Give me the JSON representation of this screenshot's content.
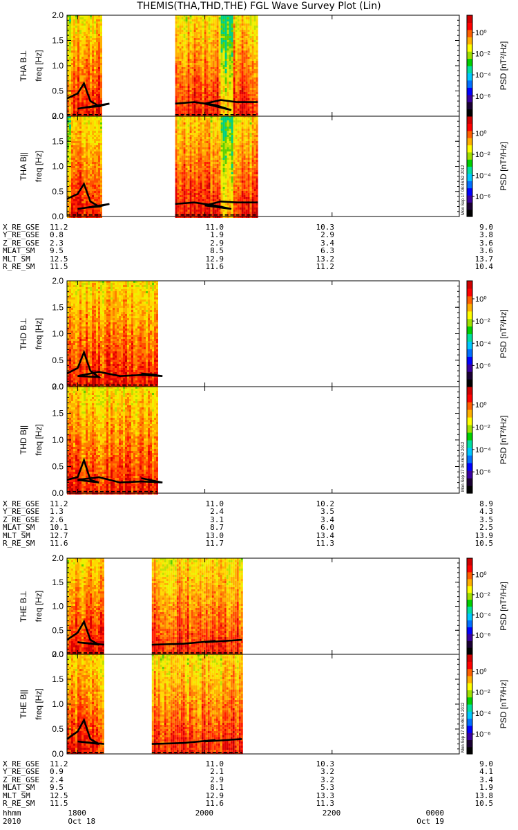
{
  "title": "THEMIS(THA,THD,THE) FGL Wave Survey Plot (Lin)",
  "colors": {
    "mean_line": "#000000",
    "frame": "#000000"
  },
  "colorbar": {
    "label": "PSD [nT²/Hz]",
    "tick_labels": [
      "10⁰",
      "10⁻²",
      "10⁻⁴",
      "10⁻⁶"
    ],
    "stamp": "Mon Sep 17 06:46:52 2012",
    "colors": [
      "#000000",
      "#1a0033",
      "#3a00a0",
      "#0000ff",
      "#0070ff",
      "#00c8ff",
      "#00e0a0",
      "#00d000",
      "#a0e000",
      "#ffff00",
      "#ffb000",
      "#ff6000",
      "#ff0000",
      "#d00000"
    ]
  },
  "chart_data": [
    {
      "type": "heatmap",
      "probe": "THA",
      "panels": [
        {
          "ylabel": "THA B⊥",
          "unit": "freq [Hz]",
          "ylim": [
            0,
            2.0
          ],
          "yticks": [
            "0.0",
            "0.5",
            "1.0",
            "1.5",
            "2.0"
          ],
          "segments": [
            [
              1750,
              1822
            ],
            [
              1932,
              2050
            ]
          ],
          "mean_freq": [
            [
              1750,
              0.35
            ],
            [
              1760,
              0.45
            ],
            [
              1766,
              0.65
            ],
            [
              1772,
              0.3
            ],
            [
              1780,
              0.2
            ],
            [
              1790,
              0.25
            ],
            [
              1800,
              0.15
            ],
            [
              1810,
              0.18
            ],
            [
              1822,
              0.2
            ],
            [
              1932,
              0.25
            ],
            [
              1950,
              0.28
            ],
            [
              1970,
              0.22
            ],
            [
              1985,
              0.12
            ],
            [
              2000,
              0.25
            ],
            [
              2015,
              0.32
            ],
            [
              2030,
              0.28
            ],
            [
              2050,
              0.28
            ]
          ]
        },
        {
          "ylabel": "THA B||",
          "unit": "freq [Hz]",
          "ylim": [
            0,
            2.0
          ],
          "yticks": [
            "0.0",
            "0.5",
            "1.0",
            "1.5",
            "2.0"
          ],
          "segments": [
            [
              1750,
              1822
            ],
            [
              1932,
              2050
            ]
          ],
          "mean_freq": [
            [
              1750,
              0.35
            ],
            [
              1760,
              0.45
            ],
            [
              1766,
              0.65
            ],
            [
              1772,
              0.3
            ],
            [
              1780,
              0.2
            ],
            [
              1790,
              0.25
            ],
            [
              1800,
              0.15
            ],
            [
              1810,
              0.18
            ],
            [
              1822,
              0.2
            ],
            [
              1932,
              0.25
            ],
            [
              1950,
              0.28
            ],
            [
              1970,
              0.22
            ],
            [
              1985,
              0.15
            ],
            [
              2000,
              0.22
            ],
            [
              2015,
              0.3
            ],
            [
              2030,
              0.28
            ],
            [
              2050,
              0.28
            ]
          ]
        }
      ],
      "ephemeris": {
        "labels": [
          "X_RE_GSE",
          "Y_RE_GSE",
          "Z_RE_GSE",
          "MLAT_SM",
          "MLT_SM",
          "R_RE_SM"
        ],
        "columns": [
          [
            "11.2",
            "0.8",
            "2.3",
            "9.5",
            "12.5",
            "11.5"
          ],
          [
            "11.0",
            "1.9",
            "2.9",
            "8.5",
            "12.9",
            "11.6"
          ],
          [
            "10.3",
            "2.9",
            "3.4",
            "6.3",
            "13.2",
            "11.2"
          ],
          [
            "9.0",
            "3.8",
            "3.6",
            "3.6",
            "13.7",
            "10.4"
          ]
        ]
      }
    },
    {
      "type": "heatmap",
      "probe": "THD",
      "panels": [
        {
          "ylabel": "THD B⊥",
          "unit": "freq [Hz]",
          "ylim": [
            0,
            2.0
          ],
          "yticks": [
            "0.0",
            "0.5",
            "1.0",
            "1.5",
            "2.0"
          ],
          "segments": [
            [
              1750,
              1915
            ]
          ],
          "mean_freq": [
            [
              1750,
              0.25
            ],
            [
              1760,
              0.35
            ],
            [
              1766,
              0.65
            ],
            [
              1772,
              0.3
            ],
            [
              1780,
              0.18
            ],
            [
              1800,
              0.2
            ],
            [
              1820,
              0.28
            ],
            [
              1840,
              0.2
            ],
            [
              1860,
              0.22
            ],
            [
              1880,
              0.2
            ],
            [
              1900,
              0.25
            ],
            [
              1915,
              0.22
            ]
          ]
        },
        {
          "ylabel": "THD B||",
          "unit": "freq [Hz]",
          "ylim": [
            0,
            2.0
          ],
          "yticks": [
            "0.0",
            "0.5",
            "1.0",
            "1.5",
            "2.0"
          ],
          "segments": [
            [
              1750,
              1915
            ]
          ],
          "mean_freq": [
            [
              1750,
              0.25
            ],
            [
              1760,
              0.3
            ],
            [
              1766,
              0.62
            ],
            [
              1772,
              0.25
            ],
            [
              1780,
              0.2
            ],
            [
              1800,
              0.25
            ],
            [
              1820,
              0.3
            ],
            [
              1840,
              0.2
            ],
            [
              1860,
              0.22
            ],
            [
              1880,
              0.2
            ],
            [
              1900,
              0.28
            ],
            [
              1915,
              0.22
            ]
          ]
        }
      ],
      "ephemeris": {
        "labels": [
          "X_RE_GSE",
          "Y_RE_GSE",
          "Z_RE_GSE",
          "MLAT_SM",
          "MLT_SM",
          "R_RE_SM"
        ],
        "columns": [
          [
            "11.2",
            "1.3",
            "2.6",
            "10.1",
            "12.7",
            "11.6"
          ],
          [
            "11.0",
            "2.4",
            "3.1",
            "8.7",
            "13.0",
            "11.7"
          ],
          [
            "10.2",
            "3.5",
            "3.4",
            "6.0",
            "13.4",
            "11.3"
          ],
          [
            "8.9",
            "4.3",
            "3.5",
            "2.5",
            "13.9",
            "10.5"
          ]
        ]
      }
    },
    {
      "type": "heatmap",
      "probe": "THE",
      "panels": [
        {
          "ylabel": "THE B⊥",
          "unit": "freq [Hz]",
          "ylim": [
            0,
            2.0
          ],
          "yticks": [
            "0.0",
            "0.5",
            "1.0",
            "1.5",
            "2.0"
          ],
          "segments": [
            [
              1750,
              1825
            ],
            [
              1910,
              2035
            ]
          ],
          "mean_freq": [
            [
              1750,
              0.3
            ],
            [
              1760,
              0.45
            ],
            [
              1766,
              0.68
            ],
            [
              1772,
              0.3
            ],
            [
              1780,
              0.2
            ],
            [
              1800,
              0.25
            ],
            [
              1825,
              0.2
            ],
            [
              1910,
              0.2
            ],
            [
              1940,
              0.22
            ],
            [
              1970,
              0.28
            ],
            [
              2000,
              0.25
            ],
            [
              2035,
              0.3
            ]
          ]
        },
        {
          "ylabel": "THE B||",
          "unit": "freq [Hz]",
          "ylim": [
            0,
            2.0
          ],
          "yticks": [
            "0.0",
            "0.5",
            "1.0",
            "1.5",
            "2.0"
          ],
          "segments": [
            [
              1750,
              1825
            ],
            [
              1910,
              2035
            ]
          ],
          "mean_freq": [
            [
              1750,
              0.3
            ],
            [
              1760,
              0.45
            ],
            [
              1766,
              0.68
            ],
            [
              1772,
              0.3
            ],
            [
              1780,
              0.2
            ],
            [
              1800,
              0.25
            ],
            [
              1825,
              0.2
            ],
            [
              1910,
              0.2
            ],
            [
              1940,
              0.22
            ],
            [
              1970,
              0.28
            ],
            [
              2000,
              0.25
            ],
            [
              2035,
              0.3
            ]
          ]
        }
      ],
      "ephemeris": {
        "labels": [
          "X_RE_GSE",
          "Y_RE_GSE",
          "Z_RE_GSE",
          "MLAT_SM",
          "MLT_SM",
          "R_RE_SM"
        ],
        "columns": [
          [
            "11.2",
            "0.9",
            "2.4",
            "9.5",
            "12.5",
            "11.5"
          ],
          [
            "11.0",
            "2.1",
            "2.9",
            "8.1",
            "12.9",
            "11.6"
          ],
          [
            "10.3",
            "3.2",
            "3.2",
            "5.3",
            "13.3",
            "11.3"
          ],
          [
            "9.0",
            "4.1",
            "3.4",
            "1.9",
            "13.8",
            "10.5"
          ]
        ]
      }
    }
  ],
  "time_axis": {
    "label": "hhmm",
    "year": "2010",
    "ticks": [
      "1800",
      "2000",
      "2200",
      "0000"
    ],
    "dates": [
      "Oct 18",
      "",
      "",
      "Oct 19"
    ],
    "xlim": [
      "17:50",
      "24:00"
    ]
  }
}
